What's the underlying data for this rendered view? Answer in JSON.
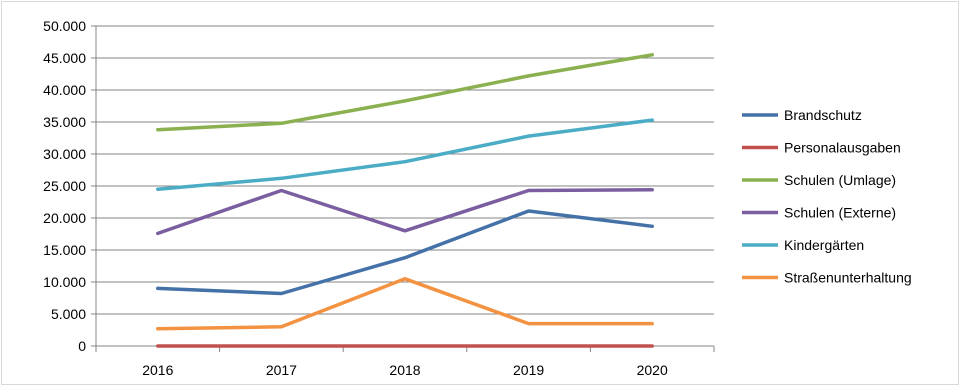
{
  "chart_data": {
    "type": "line",
    "title": "",
    "xlabel": "",
    "ylabel": "",
    "categories": [
      "2016",
      "2017",
      "2018",
      "2019",
      "2020"
    ],
    "ylim": [
      0,
      50000
    ],
    "y_ticks": [
      0,
      5000,
      10000,
      15000,
      20000,
      25000,
      30000,
      35000,
      40000,
      45000,
      50000
    ],
    "y_tick_labels": [
      "0",
      "5.000",
      "10.000",
      "15.000",
      "20.000",
      "25.000",
      "30.000",
      "35.000",
      "40.000",
      "45.000",
      "50.000"
    ],
    "grid": true,
    "legend_position": "right",
    "series": [
      {
        "name": "Brandschutz",
        "color": "#4472A8",
        "values": [
          9000,
          8200,
          13800,
          21100,
          18700
        ]
      },
      {
        "name": "Personalausgaben",
        "color": "#C0504D",
        "values": [
          0,
          0,
          0,
          0,
          0
        ]
      },
      {
        "name": "Schulen (Umlage)",
        "color": "#8AB04F",
        "values": [
          33800,
          34800,
          38300,
          42200,
          45500
        ]
      },
      {
        "name": "Schulen (Externe)",
        "color": "#7B5EA0",
        "values": [
          17600,
          24300,
          18000,
          24300,
          24400
        ]
      },
      {
        "name": "Kindergärten",
        "color": "#4BACC6",
        "values": [
          24500,
          26200,
          28800,
          32800,
          35300
        ]
      },
      {
        "name": "Straßenunterhaltung",
        "color": "#F39240",
        "values": [
          2700,
          3000,
          10500,
          3500,
          3500
        ]
      }
    ]
  }
}
